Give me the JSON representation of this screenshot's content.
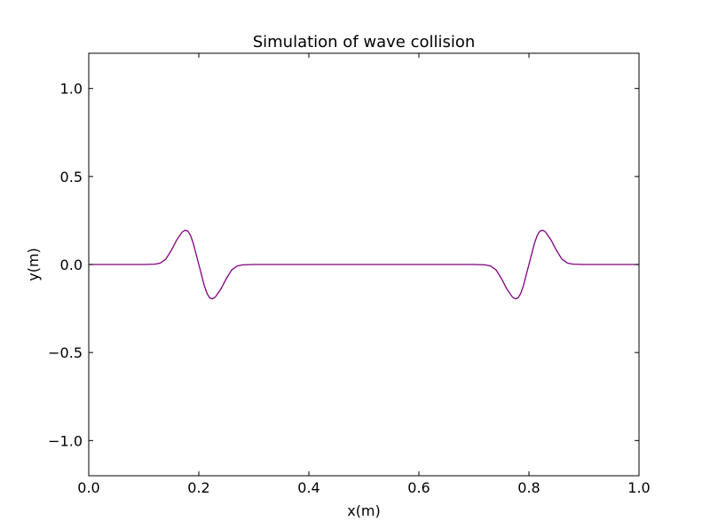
{
  "chart_data": {
    "type": "line",
    "title": "Simulation of wave collision",
    "xlabel": "x(m)",
    "ylabel": "y(m)",
    "xlim": [
      0.0,
      1.0
    ],
    "ylim": [
      -1.2,
      1.2
    ],
    "x_ticks": [
      "0.0",
      "0.2",
      "0.4",
      "0.6",
      "0.8",
      "1.0"
    ],
    "y_ticks": [
      "−1.0",
      "−0.5",
      "0.0",
      "0.5",
      "1.0"
    ],
    "grid": false,
    "series": [
      {
        "color": "#800080",
        "x": [
          0.0,
          0.05,
          0.1,
          0.12,
          0.13,
          0.14,
          0.15,
          0.16,
          0.17,
          0.175,
          0.18,
          0.185,
          0.19,
          0.2,
          0.21,
          0.215,
          0.22,
          0.225,
          0.23,
          0.24,
          0.25,
          0.26,
          0.27,
          0.28,
          0.3,
          0.4,
          0.5,
          0.6,
          0.7,
          0.72,
          0.73,
          0.74,
          0.75,
          0.76,
          0.77,
          0.775,
          0.78,
          0.785,
          0.79,
          0.8,
          0.81,
          0.815,
          0.82,
          0.825,
          0.83,
          0.84,
          0.85,
          0.86,
          0.87,
          0.88,
          0.9,
          0.95,
          1.0
        ],
        "y": [
          0.0,
          0.0,
          0.0,
          0.002,
          0.008,
          0.03,
          0.08,
          0.14,
          0.185,
          0.195,
          0.19,
          0.165,
          0.12,
          0.0,
          -0.12,
          -0.165,
          -0.19,
          -0.195,
          -0.185,
          -0.14,
          -0.08,
          -0.03,
          -0.008,
          -0.002,
          0.0,
          0.0,
          0.0,
          0.0,
          0.0,
          -0.002,
          -0.008,
          -0.03,
          -0.08,
          -0.14,
          -0.185,
          -0.195,
          -0.19,
          -0.165,
          -0.12,
          0.0,
          0.12,
          0.165,
          0.19,
          0.195,
          0.185,
          0.14,
          0.08,
          0.03,
          0.008,
          0.002,
          0.0,
          0.0,
          0.0
        ]
      }
    ]
  }
}
